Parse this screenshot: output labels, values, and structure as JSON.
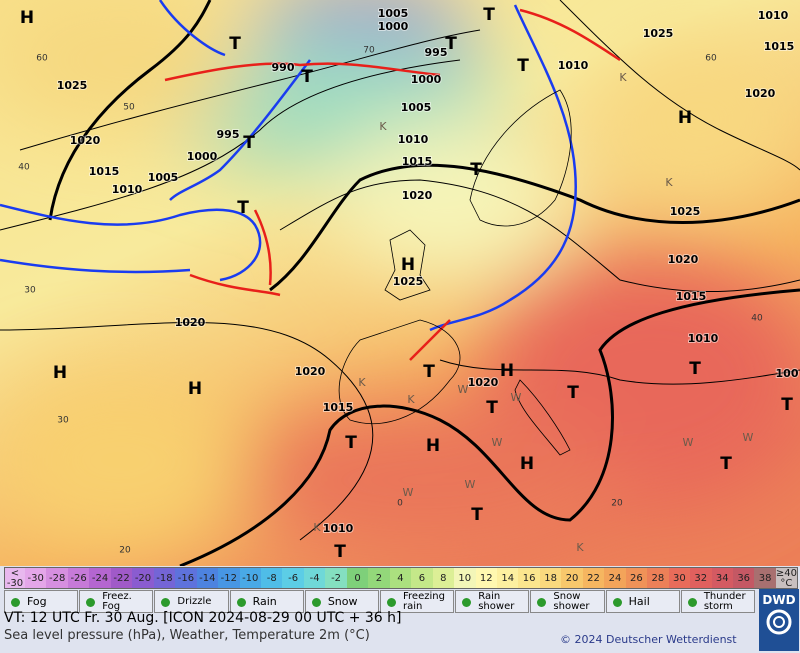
{
  "map": {
    "isobar_labels": [
      "1005",
      "1000",
      "995",
      "990",
      "1025",
      "1000",
      "1005",
      "1010",
      "995",
      "1000",
      "1020",
      "1015",
      "1005",
      "1010",
      "1015",
      "1020",
      "1025",
      "1010",
      "1015",
      "1010",
      "1020",
      "1025",
      "1020",
      "1015",
      "1010",
      "1025",
      "1020",
      "1020",
      "1020",
      "1015",
      "1010",
      "100"
    ],
    "pressure_centers": [
      "H",
      "H",
      "H",
      "H",
      "H",
      "H",
      "H",
      "H",
      "T",
      "T",
      "T",
      "T",
      "T",
      "T",
      "T",
      "T",
      "T",
      "T",
      "T",
      "T",
      "T",
      "T",
      "T",
      "T",
      "T"
    ],
    "symbol_letters": [
      "K",
      "K",
      "K",
      "K",
      "K",
      "K",
      "K",
      "W",
      "W",
      "W",
      "W",
      "W",
      "W",
      "W"
    ],
    "graticule_labels": [
      "60",
      "50",
      "40",
      "30",
      "40",
      "30",
      "60",
      "70",
      "20",
      "20",
      "0"
    ]
  },
  "colorbar": {
    "low": {
      "symbol": "<",
      "value": "-30",
      "color": "#e8b8ee"
    },
    "cells": [
      {
        "label": "-30",
        "color": "#e4a6e9"
      },
      {
        "label": "-28",
        "color": "#d68fe0"
      },
      {
        "label": "-26",
        "color": "#c67ad8"
      },
      {
        "label": "-24",
        "color": "#b466d0"
      },
      {
        "label": "-22",
        "color": "#a05ac8"
      },
      {
        "label": "-20",
        "color": "#8a5cd0"
      },
      {
        "label": "-18",
        "color": "#7465d6"
      },
      {
        "label": "-16",
        "color": "#5e72dc"
      },
      {
        "label": "-14",
        "color": "#4d83e0"
      },
      {
        "label": "-12",
        "color": "#4796e4"
      },
      {
        "label": "-10",
        "color": "#49a9e6"
      },
      {
        "label": "-8",
        "color": "#4fbde8"
      },
      {
        "label": "-6",
        "color": "#5ccde6"
      },
      {
        "label": "-4",
        "color": "#6fd8d8"
      },
      {
        "label": "-2",
        "color": "#84dfc0"
      },
      {
        "label": "0",
        "color": "#7ed07a"
      },
      {
        "label": "2",
        "color": "#93d87a"
      },
      {
        "label": "4",
        "color": "#abe07f"
      },
      {
        "label": "6",
        "color": "#c4e889"
      },
      {
        "label": "8",
        "color": "#dcef96"
      },
      {
        "label": "10",
        "color": "#f3f6b8"
      },
      {
        "label": "12",
        "color": "#fff8b0"
      },
      {
        "label": "14",
        "color": "#fdf0a0"
      },
      {
        "label": "16",
        "color": "#fbe68e"
      },
      {
        "label": "18",
        "color": "#fad97e"
      },
      {
        "label": "20",
        "color": "#f8c86c"
      },
      {
        "label": "22",
        "color": "#f6b660"
      },
      {
        "label": "24",
        "color": "#f3a45a"
      },
      {
        "label": "26",
        "color": "#f09258"
      },
      {
        "label": "28",
        "color": "#ec8058"
      },
      {
        "label": "30",
        "color": "#e86c5a"
      },
      {
        "label": "32",
        "color": "#e0605e"
      },
      {
        "label": "34",
        "color": "#d45a62"
      },
      {
        "label": "36",
        "color": "#c45864"
      },
      {
        "label": "38",
        "color": "#a87070"
      }
    ],
    "high": {
      "value": "≥40",
      "unit": "°C",
      "color": "#c8c0c0"
    }
  },
  "legend": [
    "Fog",
    "Freez. Fog",
    "Drizzle",
    "Rain",
    "Snow",
    "Freezing rain",
    "Rain shower",
    "Snow shower",
    "Hail",
    "Thunder storm"
  ],
  "footer": {
    "valid_time": "VT: 12 UTC Fr.  30 Aug. [ICON 2024-08-29  00 UTC + 36 h]",
    "product": "Sea level pressure (hPa), Weather, Temperature 2m (°C)",
    "copyright": "© 2024 Deutscher Wetterdienst",
    "logo": "DWD"
  }
}
